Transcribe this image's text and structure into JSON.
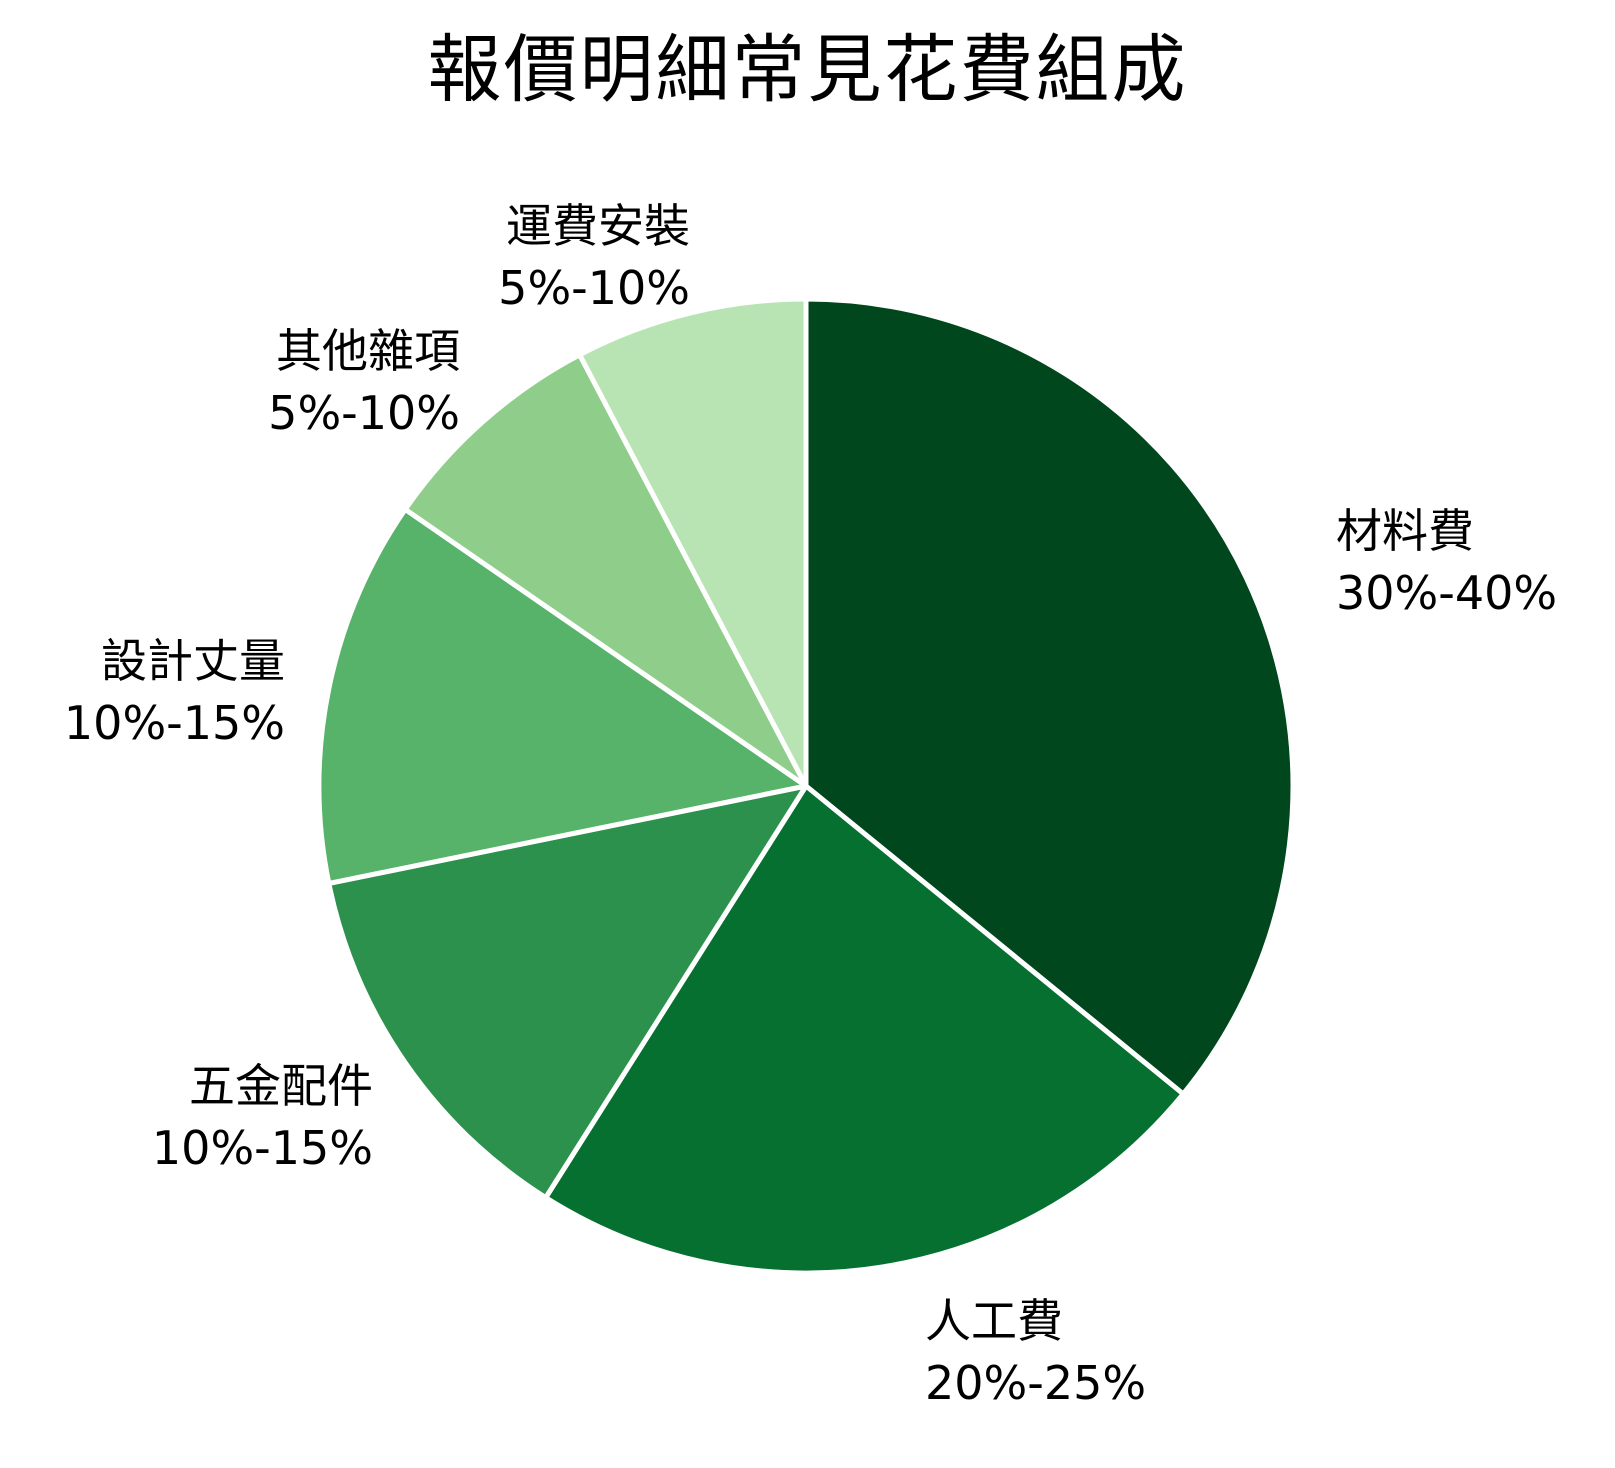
{
  "chart_data": {
    "type": "pie",
    "title": "報價明細常見花費組成",
    "start_angle_deg": 0,
    "direction": "clockwise",
    "slice_stroke": "#ffffff",
    "slices": [
      {
        "name": "材料費",
        "range": "30%-40%",
        "value": 35,
        "color": "#00471d"
      },
      {
        "name": "人工費",
        "range": "20%-25%",
        "value": 22.5,
        "color": "#05702f"
      },
      {
        "name": "五金配件",
        "range": "10%-15%",
        "value": 12.5,
        "color": "#2c914c"
      },
      {
        "name": "設計丈量",
        "range": "10%-15%",
        "value": 12.5,
        "color": "#56b369"
      },
      {
        "name": "其他雜項",
        "range": "5%-10%",
        "value": 7.5,
        "color": "#8fce8a"
      },
      {
        "name": "運費安裝",
        "range": "5%-10%",
        "value": 7.5,
        "color": "#b8e3b3"
      }
    ],
    "legend": "none (labels placed outside slices)"
  }
}
